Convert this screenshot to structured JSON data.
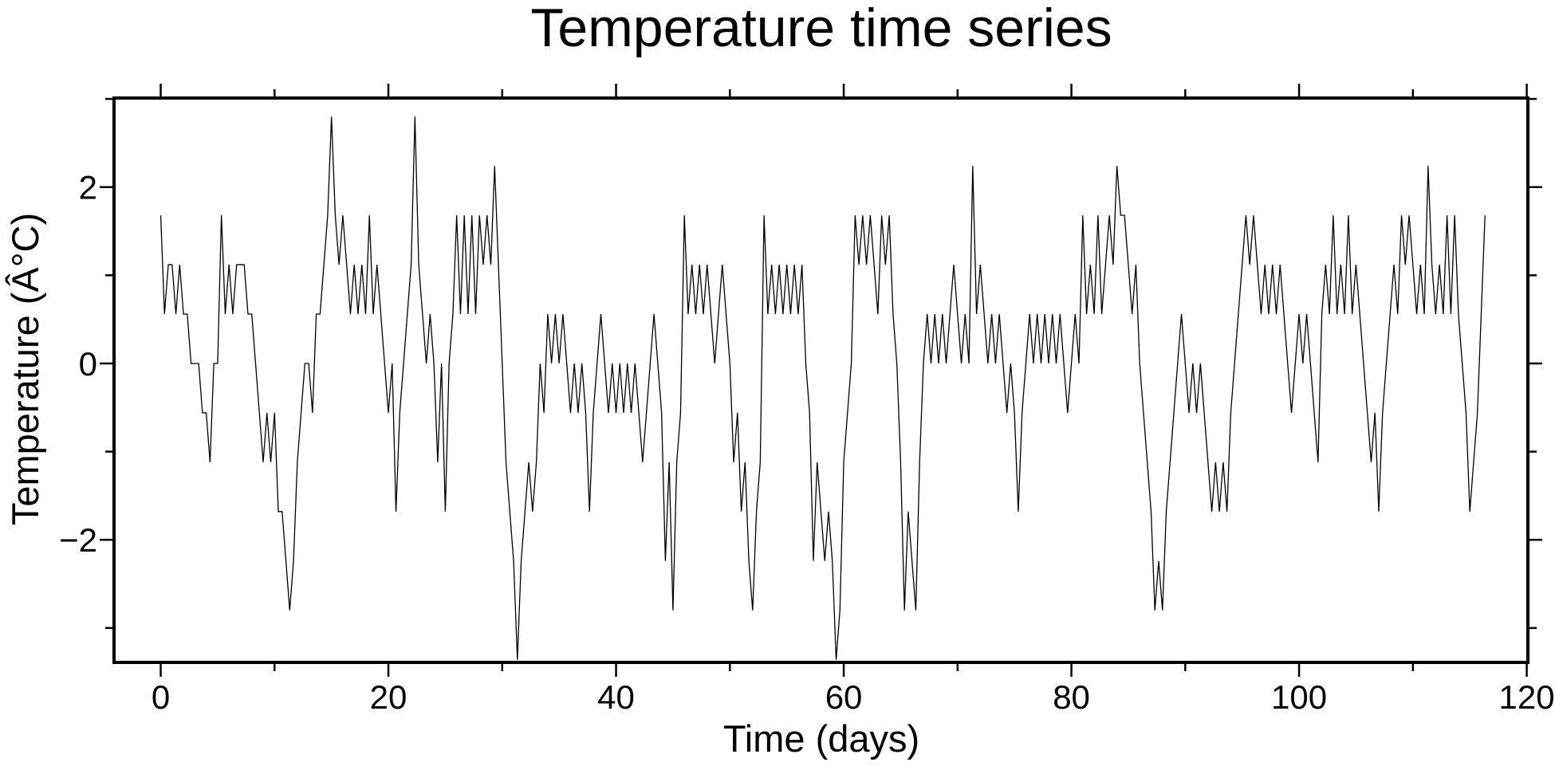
{
  "page": {
    "background": "#ffffff",
    "foreground": "#000000"
  },
  "chart_data": {
    "type": "line",
    "title": "Temperature time series",
    "xlabel": "Time (days)",
    "ylabel": "Temperature (Â°C)",
    "grid": false,
    "legend": null,
    "line_color": "#000000",
    "frame_color": "#000000",
    "background_color": "#ffffff",
    "xlim": [
      -4.1,
      120.1
    ],
    "ylim": [
      -3.39,
      3.01
    ],
    "x_ticks_major": [
      0,
      20,
      40,
      60,
      80,
      100,
      120
    ],
    "x_tick_labels": [
      "0",
      "20",
      "40",
      "60",
      "80",
      "100",
      "120"
    ],
    "x_minor_tick_interval": 10,
    "y_ticks_major": [
      -2,
      0,
      2
    ],
    "y_tick_labels": [
      "−2",
      "0",
      "2"
    ],
    "y_minor_tick_interval": 1,
    "quantization_step_c": 0.56,
    "n_points": 350,
    "x_start": 0,
    "x_step": 0.33333,
    "y": [
      1.68,
      0.56,
      1.12,
      1.12,
      0.56,
      1.12,
      0.56,
      0.56,
      0,
      0,
      0,
      -0.56,
      -0.56,
      -1.12,
      0,
      0,
      1.68,
      0.56,
      1.12,
      0.56,
      1.12,
      1.12,
      1.12,
      0.56,
      0.56,
      0,
      -0.56,
      -1.12,
      -0.56,
      -1.12,
      -0.56,
      -1.68,
      -1.68,
      -2.24,
      -2.8,
      -2.24,
      -1.12,
      -0.56,
      0,
      0,
      -0.56,
      0.56,
      0.56,
      1.12,
      1.68,
      2.8,
      1.68,
      1.12,
      1.68,
      1.12,
      0.56,
      1.12,
      0.56,
      1.12,
      0.56,
      1.68,
      0.56,
      1.12,
      0.56,
      0,
      -0.56,
      0,
      -1.68,
      -0.56,
      0,
      0.56,
      1.12,
      2.8,
      1.12,
      0.56,
      0,
      0.56,
      0,
      -1.12,
      0,
      -1.68,
      0,
      0.56,
      1.68,
      0.56,
      1.68,
      0.56,
      1.68,
      0.56,
      1.68,
      1.12,
      1.68,
      1.12,
      2.24,
      1.12,
      0,
      -1.12,
      -1.68,
      -2.24,
      -3.36,
      -2.24,
      -1.68,
      -1.12,
      -1.68,
      -1.12,
      0,
      -0.56,
      0.56,
      0,
      0.56,
      0,
      0.56,
      0,
      -0.56,
      0,
      -0.56,
      0,
      -0.56,
      -1.68,
      -0.56,
      0,
      0.56,
      0,
      -0.56,
      0,
      -0.56,
      0,
      -0.56,
      0,
      -0.56,
      0,
      -0.56,
      -1.12,
      -0.56,
      0,
      0.56,
      0,
      -0.56,
      -2.24,
      -1.12,
      -2.8,
      -1.12,
      -0.56,
      1.68,
      0.56,
      1.12,
      0.56,
      1.12,
      0.56,
      1.12,
      0.56,
      0,
      0.56,
      1.12,
      0.56,
      0,
      -1.12,
      -0.56,
      -1.68,
      -1.12,
      -2.24,
      -2.8,
      -1.68,
      -1.12,
      1.68,
      0.56,
      1.12,
      0.56,
      1.12,
      0.56,
      1.12,
      0.56,
      1.12,
      0.56,
      1.12,
      0,
      -0.56,
      -2.24,
      -1.12,
      -1.68,
      -2.24,
      -1.68,
      -2.24,
      -3.36,
      -2.8,
      -1.12,
      -0.56,
      0,
      1.68,
      1.12,
      1.68,
      1.12,
      1.68,
      1.12,
      0.56,
      1.68,
      1.12,
      1.68,
      0.56,
      0,
      -1.12,
      -2.8,
      -1.68,
      -2.24,
      -2.8,
      -1.12,
      0,
      0.56,
      0,
      0.56,
      0,
      0.56,
      0,
      0.56,
      1.12,
      0.56,
      0,
      0.56,
      0,
      2.24,
      0.56,
      1.12,
      0.56,
      0,
      0.56,
      0,
      0.56,
      0,
      -0.56,
      0,
      -0.56,
      -1.68,
      -0.56,
      0,
      0.56,
      0,
      0.56,
      0,
      0.56,
      0,
      0.56,
      0,
      0.56,
      0,
      -0.56,
      0,
      0.56,
      0,
      1.68,
      0.56,
      1.12,
      0.56,
      1.68,
      0.56,
      1.12,
      1.68,
      1.12,
      2.24,
      1.68,
      1.68,
      1.12,
      0.56,
      1.12,
      0,
      -0.56,
      -1.12,
      -1.68,
      -2.8,
      -2.24,
      -2.8,
      -1.68,
      -1.12,
      -0.56,
      0,
      0.56,
      0,
      -0.56,
      0,
      -0.56,
      0,
      -0.56,
      -1.12,
      -1.68,
      -1.12,
      -1.68,
      -1.12,
      -1.68,
      -0.56,
      0,
      0.56,
      1.12,
      1.68,
      1.12,
      1.68,
      1.12,
      0.56,
      1.12,
      0.56,
      1.12,
      0.56,
      1.12,
      0.56,
      0,
      -0.56,
      0,
      0.56,
      0,
      0.56,
      0,
      -0.56,
      -1.12,
      0.56,
      1.12,
      0.56,
      1.68,
      0.56,
      1.12,
      0.56,
      1.68,
      0.56,
      1.12,
      0.56,
      0,
      -0.56,
      -1.12,
      -0.56,
      -1.68,
      -0.56,
      0,
      0.56,
      1.12,
      0.56,
      1.68,
      1.12,
      1.68,
      1.12,
      0.56,
      1.12,
      0.56,
      2.24,
      1.12,
      0.56,
      1.12,
      0.56,
      1.68,
      0.56,
      1.68,
      0.56,
      0,
      -0.56,
      -1.68,
      -1.12,
      -0.56,
      0.56,
      1.68
    ]
  }
}
